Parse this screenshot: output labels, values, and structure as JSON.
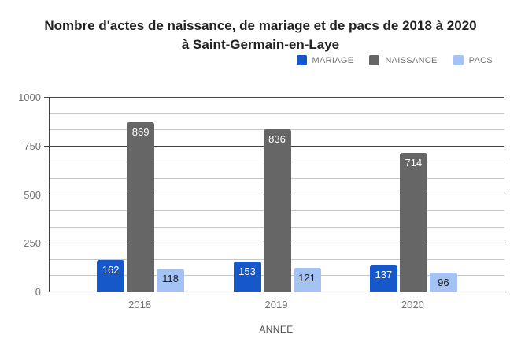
{
  "chart_data": {
    "type": "bar",
    "title": "Nombre d'actes de naissance, de mariage et de pacs de 2018 à 2020 à Saint-Germain-en-Laye",
    "title_lines": [
      "Nombre d'actes de naissance, de mariage et de pacs de 2018 à 2020",
      "à Saint-Germain-en-Laye"
    ],
    "categories": [
      "2018",
      "2019",
      "2020"
    ],
    "series": [
      {
        "name": "MARIAGE",
        "color": "#1657c9",
        "label_color": "#ffffff",
        "values": [
          162,
          153,
          137
        ]
      },
      {
        "name": "NAISSANCE",
        "color": "#666666",
        "label_color": "#ffffff",
        "values": [
          869,
          836,
          714
        ]
      },
      {
        "name": "PACS",
        "color": "#a4c2f4",
        "label_color": "#212121",
        "values": [
          118,
          121,
          96
        ]
      }
    ],
    "xlabel": "ANNEE",
    "ylabel": "",
    "ylim": [
      0,
      1000
    ],
    "yticks": [
      0,
      250,
      500,
      750,
      1000
    ],
    "minor_gridlines_per_interval": 2,
    "grid": true,
    "legend_position": "top-right",
    "colors": {
      "title_text": "#212121",
      "axis_line": "#424242",
      "major_gridline": "#424242",
      "minor_gridline": "#c6c6c6",
      "tick_label_text": "#757575",
      "legend_text": "#757575",
      "axis_title_text": "#4d4d4d",
      "background": "#ffffff"
    }
  }
}
